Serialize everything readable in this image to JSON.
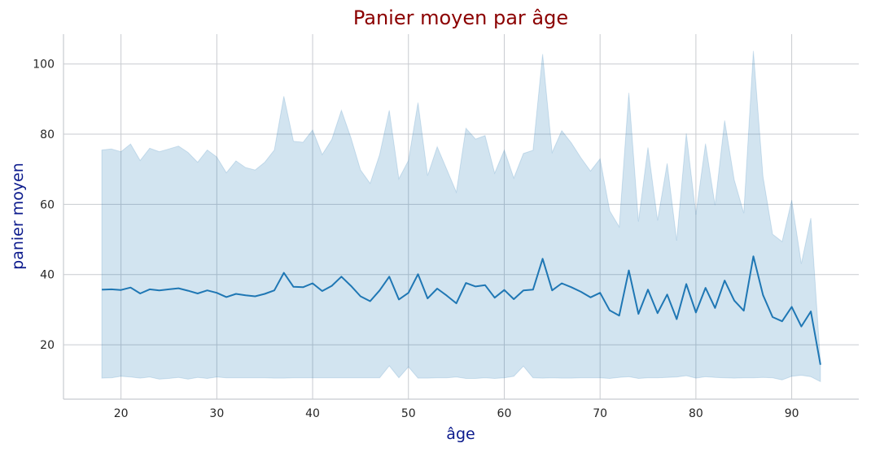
{
  "chart_data": {
    "type": "line",
    "title": "Panier moyen par âge",
    "xlabel": "âge",
    "ylabel": "panier moyen",
    "xlim": [
      14,
      97
    ],
    "ylim": [
      4.5,
      108.5
    ],
    "xticks": [
      20,
      30,
      40,
      50,
      60,
      70,
      80,
      90
    ],
    "yticks": [
      20,
      40,
      60,
      80,
      100
    ],
    "grid": true,
    "colors": {
      "line": "#1f77b4",
      "band": "#1f77b4",
      "title": "#8b0000",
      "axis_label": "#0b1a8c"
    },
    "x": [
      18,
      19,
      20,
      21,
      22,
      23,
      24,
      25,
      26,
      27,
      28,
      29,
      30,
      31,
      32,
      33,
      34,
      35,
      36,
      37,
      38,
      39,
      40,
      41,
      42,
      43,
      44,
      45,
      46,
      47,
      48,
      49,
      50,
      51,
      52,
      53,
      54,
      55,
      56,
      57,
      58,
      59,
      60,
      61,
      62,
      63,
      64,
      65,
      66,
      67,
      68,
      69,
      70,
      71,
      72,
      73,
      74,
      75,
      76,
      77,
      78,
      79,
      80,
      81,
      82,
      83,
      84,
      85,
      86,
      87,
      88,
      89,
      90,
      91,
      92,
      93
    ],
    "series": [
      {
        "values": [
          35.7,
          35.8,
          35.6,
          36.3,
          34.6,
          35.8,
          35.5,
          35.8,
          36.1,
          35.4,
          34.6,
          35.5,
          34.8,
          33.6,
          34.5,
          34.1,
          33.8,
          34.5,
          35.5,
          40.5,
          36.5,
          36.4,
          37.5,
          35.3,
          36.8,
          39.4,
          36.8,
          33.8,
          32.4,
          35.5,
          39.4,
          32.9,
          34.8,
          40.1,
          33.2,
          36.0,
          34.0,
          31.8,
          37.6,
          36.6,
          37.0,
          33.4,
          35.6,
          33.0,
          35.5,
          35.7,
          44.5,
          35.5,
          37.5,
          36.4,
          35.1,
          33.5,
          34.8,
          29.8,
          28.3,
          41.2,
          28.8,
          35.7,
          29.0,
          34.3,
          27.3,
          37.3,
          29.2,
          36.2,
          30.5,
          38.3,
          32.6,
          29.7,
          45.2,
          34.2,
          27.9,
          26.7,
          30.8,
          25.2,
          29.5,
          14.3
        ],
        "ci_upper": [
          75.5,
          75.8,
          75.0,
          77.2,
          72.5,
          76.0,
          75.0,
          75.8,
          76.6,
          74.8,
          72.0,
          75.5,
          73.5,
          69.0,
          72.4,
          70.5,
          69.8,
          72.0,
          75.5,
          90.8,
          78.0,
          77.7,
          81.2,
          74.2,
          78.5,
          86.8,
          79.0,
          69.8,
          66.0,
          74.2,
          86.8,
          67.3,
          72.5,
          89.0,
          68.2,
          76.4,
          70.0,
          63.5,
          81.7,
          78.6,
          79.6,
          68.9,
          75.5,
          67.5,
          74.5,
          75.4,
          102.8,
          74.8,
          81.0,
          77.5,
          73.3,
          69.5,
          73.0,
          58.2,
          53.6,
          91.8,
          55.1,
          76.2,
          55.4,
          71.7,
          49.7,
          80.2,
          57.1,
          77.3,
          59.8,
          83.9,
          67.0,
          57.5,
          103.7,
          68.0,
          51.5,
          49.4,
          61.2,
          43.1,
          56.1,
          15.0
        ],
        "ci_lower": [
          10.5,
          10.6,
          11.0,
          10.8,
          10.5,
          10.8,
          10.2,
          10.4,
          10.7,
          10.2,
          10.7,
          10.4,
          10.8,
          10.6,
          10.6,
          10.6,
          10.6,
          10.6,
          10.5,
          10.5,
          10.6,
          10.6,
          10.6,
          10.6,
          10.6,
          10.6,
          10.6,
          10.6,
          10.6,
          10.6,
          14.0,
          10.6,
          13.7,
          10.5,
          10.5,
          10.6,
          10.6,
          10.8,
          10.4,
          10.4,
          10.6,
          10.4,
          10.6,
          11.0,
          13.9,
          10.6,
          10.5,
          10.6,
          10.5,
          10.5,
          10.6,
          10.6,
          10.6,
          10.4,
          10.7,
          10.9,
          10.4,
          10.6,
          10.6,
          10.7,
          10.8,
          11.2,
          10.5,
          10.9,
          10.7,
          10.6,
          10.5,
          10.6,
          10.6,
          10.7,
          10.6,
          10.0,
          11.0,
          11.3,
          10.9,
          9.5
        ]
      }
    ]
  }
}
